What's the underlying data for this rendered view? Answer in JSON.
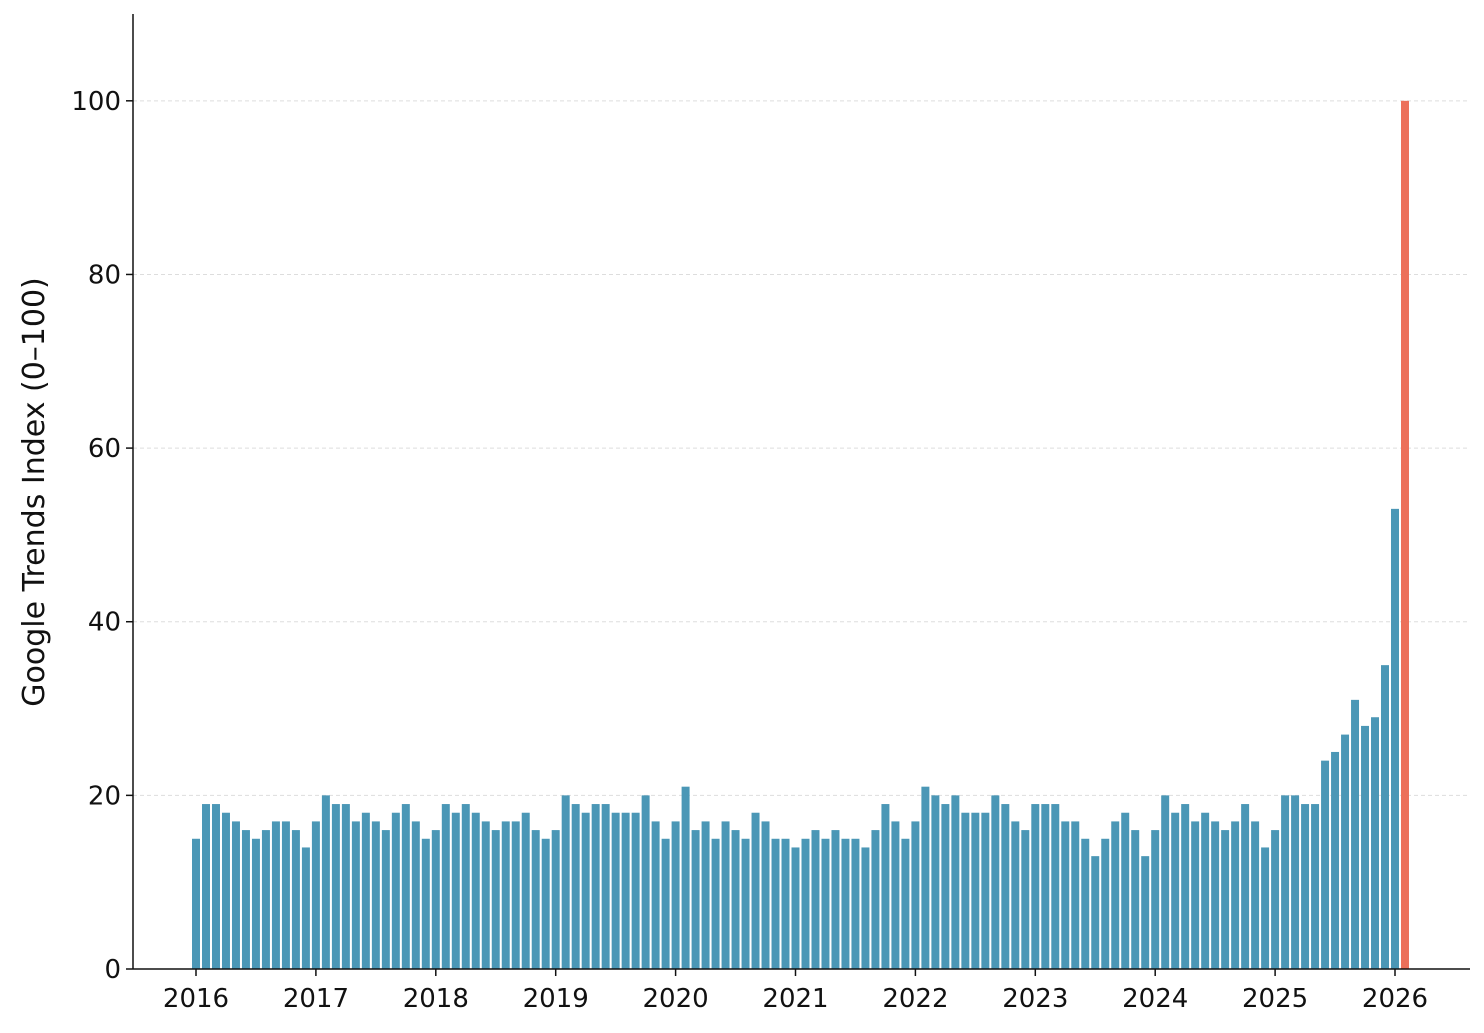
{
  "chart_data": {
    "type": "bar",
    "title": "",
    "xlabel": "",
    "ylabel": "Google Trends Index (0–100)",
    "ylim": [
      0,
      110
    ],
    "grid": "horizontal dashed",
    "start_year": 2016,
    "y_ticks": [
      0,
      20,
      40,
      60,
      80,
      100
    ],
    "x_ticks": [
      "2016",
      "2017",
      "2018",
      "2019",
      "2020",
      "2021",
      "2022",
      "2023",
      "2024",
      "2025",
      "2026"
    ],
    "colors": {
      "bar": "#4b97b6",
      "highlight": "#ec705a"
    },
    "values": [
      15,
      19,
      19,
      18,
      17,
      16,
      15,
      16,
      17,
      17,
      16,
      14,
      17,
      20,
      19,
      19,
      17,
      18,
      17,
      16,
      18,
      19,
      17,
      15,
      16,
      19,
      18,
      19,
      18,
      17,
      16,
      17,
      17,
      18,
      16,
      15,
      16,
      20,
      19,
      18,
      19,
      19,
      18,
      18,
      18,
      20,
      17,
      15,
      17,
      21,
      16,
      17,
      15,
      17,
      16,
      15,
      18,
      17,
      15,
      15,
      14,
      15,
      16,
      15,
      16,
      15,
      15,
      14,
      16,
      19,
      17,
      15,
      17,
      21,
      20,
      19,
      20,
      18,
      18,
      18,
      20,
      19,
      17,
      16,
      19,
      19,
      19,
      17,
      17,
      15,
      13,
      15,
      17,
      18,
      16,
      13,
      16,
      20,
      18,
      19,
      17,
      18,
      17,
      16,
      17,
      19,
      17,
      14,
      16,
      20,
      20,
      19,
      19,
      24,
      25,
      27,
      31,
      28,
      29,
      35,
      53,
      100
    ],
    "highlight_index": 121
  }
}
